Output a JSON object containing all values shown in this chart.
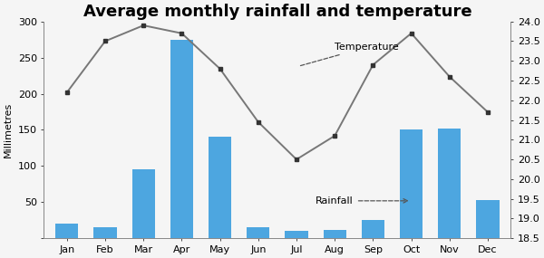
{
  "months": [
    "Jan",
    "Feb",
    "Mar",
    "Apr",
    "May",
    "Jun",
    "Jul",
    "Aug",
    "Sep",
    "Oct",
    "Nov",
    "Dec"
  ],
  "rainfall": [
    20,
    15,
    95,
    275,
    140,
    15,
    10,
    12,
    25,
    150,
    152,
    53
  ],
  "temperature": [
    22.2,
    23.5,
    23.9,
    23.7,
    22.8,
    21.45,
    20.5,
    21.1,
    22.9,
    23.7,
    22.6,
    21.7
  ],
  "bar_color": "#4da6e0",
  "line_color": "#777777",
  "marker_color": "#333333",
  "title": "Average monthly rainfall and temperature",
  "ylabel_left": "Millimetres",
  "ylim_left": [
    0,
    300
  ],
  "ylim_right": [
    18.5,
    24.0
  ],
  "yticks_left": [
    0,
    50,
    100,
    150,
    200,
    250,
    300
  ],
  "yticks_right": [
    18.5,
    19.0,
    19.5,
    20.0,
    20.5,
    21.0,
    21.5,
    22.0,
    22.5,
    23.0,
    23.5,
    24.0
  ],
  "background_color": "#f5f5f5",
  "title_fontsize": 13,
  "axis_fontsize": 8
}
